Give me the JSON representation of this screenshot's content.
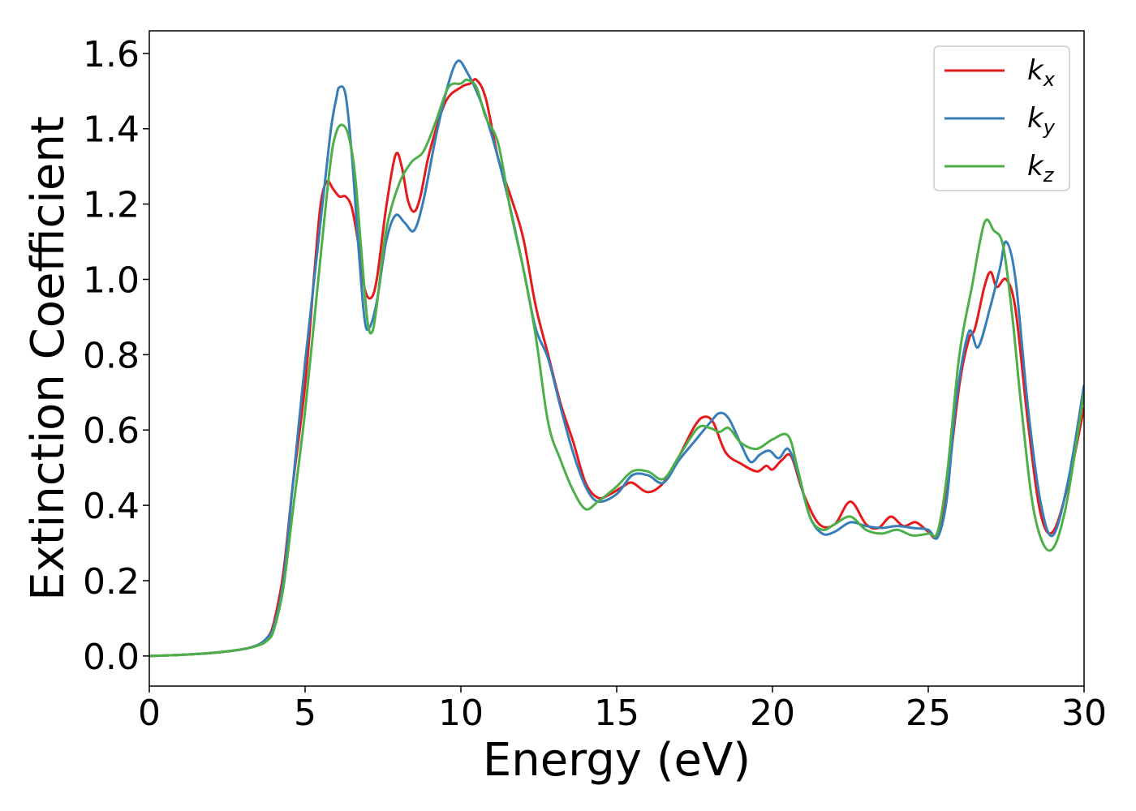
{
  "chart_data": {
    "type": "line",
    "title": "",
    "xlabel": "Energy (eV)",
    "ylabel": "Extinction Coefficient",
    "xlim": [
      0,
      30
    ],
    "ylim": [
      -0.08,
      1.66
    ],
    "xticks": [
      0,
      5,
      10,
      15,
      20,
      25,
      30
    ],
    "xtick_labels": [
      "0",
      "5",
      "10",
      "15",
      "20",
      "25",
      "30"
    ],
    "yticks": [
      0.0,
      0.2,
      0.4,
      0.6,
      0.8,
      1.0,
      1.2,
      1.4,
      1.6
    ],
    "ytick_labels": [
      "0.0",
      "0.2",
      "0.4",
      "0.6",
      "0.8",
      "1.0",
      "1.2",
      "1.4",
      "1.6"
    ],
    "grid": false,
    "legend_position": "top-right",
    "series": [
      {
        "name": "k_x",
        "label_base": "k",
        "label_sub": "x",
        "color": "#e41a1c",
        "points": [
          [
            0,
            0.0
          ],
          [
            1,
            0.003
          ],
          [
            2,
            0.008
          ],
          [
            3,
            0.018
          ],
          [
            3.5,
            0.03
          ],
          [
            3.8,
            0.05
          ],
          [
            4,
            0.09
          ],
          [
            4.3,
            0.22
          ],
          [
            4.6,
            0.45
          ],
          [
            5,
            0.72
          ],
          [
            5.3,
            1.02
          ],
          [
            5.5,
            1.2
          ],
          [
            5.7,
            1.26
          ],
          [
            5.9,
            1.24
          ],
          [
            6.1,
            1.22
          ],
          [
            6.3,
            1.22
          ],
          [
            6.5,
            1.19
          ],
          [
            6.7,
            1.1
          ],
          [
            6.9,
            0.98
          ],
          [
            7.1,
            0.95
          ],
          [
            7.3,
            1.0
          ],
          [
            7.6,
            1.19
          ],
          [
            7.9,
            1.33
          ],
          [
            8.1,
            1.3
          ],
          [
            8.3,
            1.21
          ],
          [
            8.5,
            1.18
          ],
          [
            8.7,
            1.22
          ],
          [
            9,
            1.34
          ],
          [
            9.5,
            1.47
          ],
          [
            10,
            1.51
          ],
          [
            10.3,
            1.52
          ],
          [
            10.5,
            1.53
          ],
          [
            10.8,
            1.48
          ],
          [
            11.2,
            1.32
          ],
          [
            11.6,
            1.22
          ],
          [
            12,
            1.11
          ],
          [
            12.4,
            0.93
          ],
          [
            12.8,
            0.8
          ],
          [
            13.2,
            0.67
          ],
          [
            13.6,
            0.57
          ],
          [
            14,
            0.46
          ],
          [
            14.4,
            0.42
          ],
          [
            14.8,
            0.43
          ],
          [
            15.2,
            0.45
          ],
          [
            15.5,
            0.46
          ],
          [
            16,
            0.435
          ],
          [
            16.5,
            0.46
          ],
          [
            17,
            0.53
          ],
          [
            17.5,
            0.61
          ],
          [
            17.8,
            0.635
          ],
          [
            18.1,
            0.62
          ],
          [
            18.5,
            0.54
          ],
          [
            19,
            0.51
          ],
          [
            19.5,
            0.49
          ],
          [
            19.8,
            0.505
          ],
          [
            20,
            0.495
          ],
          [
            20.3,
            0.52
          ],
          [
            20.6,
            0.53
          ],
          [
            21,
            0.43
          ],
          [
            21.5,
            0.35
          ],
          [
            22,
            0.35
          ],
          [
            22.5,
            0.41
          ],
          [
            23,
            0.35
          ],
          [
            23.4,
            0.34
          ],
          [
            23.8,
            0.37
          ],
          [
            24.2,
            0.345
          ],
          [
            24.6,
            0.355
          ],
          [
            25,
            0.33
          ],
          [
            25.3,
            0.32
          ],
          [
            25.6,
            0.45
          ],
          [
            26,
            0.72
          ],
          [
            26.3,
            0.84
          ],
          [
            26.5,
            0.87
          ],
          [
            26.8,
            0.98
          ],
          [
            27,
            1.02
          ],
          [
            27.2,
            0.98
          ],
          [
            27.5,
            1.0
          ],
          [
            27.8,
            0.92
          ],
          [
            28.2,
            0.62
          ],
          [
            28.6,
            0.38
          ],
          [
            29,
            0.33
          ],
          [
            29.5,
            0.46
          ],
          [
            30,
            0.66
          ]
        ]
      },
      {
        "name": "k_y",
        "label_base": "k",
        "label_sub": "y",
        "color": "#377eb8",
        "points": [
          [
            0,
            0.0
          ],
          [
            1,
            0.003
          ],
          [
            2,
            0.008
          ],
          [
            3,
            0.018
          ],
          [
            3.5,
            0.03
          ],
          [
            3.8,
            0.05
          ],
          [
            4,
            0.08
          ],
          [
            4.3,
            0.2
          ],
          [
            4.6,
            0.45
          ],
          [
            5,
            0.78
          ],
          [
            5.4,
            1.08
          ],
          [
            5.8,
            1.38
          ],
          [
            6,
            1.48
          ],
          [
            6.1,
            1.51
          ],
          [
            6.3,
            1.49
          ],
          [
            6.5,
            1.33
          ],
          [
            6.7,
            1.1
          ],
          [
            6.9,
            0.9
          ],
          [
            7.05,
            0.87
          ],
          [
            7.3,
            0.94
          ],
          [
            7.6,
            1.1
          ],
          [
            7.9,
            1.17
          ],
          [
            8.2,
            1.15
          ],
          [
            8.5,
            1.13
          ],
          [
            8.8,
            1.21
          ],
          [
            9.2,
            1.38
          ],
          [
            9.6,
            1.52
          ],
          [
            9.9,
            1.58
          ],
          [
            10.2,
            1.55
          ],
          [
            10.6,
            1.48
          ],
          [
            11,
            1.38
          ],
          [
            11.5,
            1.22
          ],
          [
            12,
            1.03
          ],
          [
            12.4,
            0.87
          ],
          [
            12.8,
            0.79
          ],
          [
            13.2,
            0.66
          ],
          [
            13.6,
            0.54
          ],
          [
            14,
            0.45
          ],
          [
            14.4,
            0.41
          ],
          [
            15,
            0.43
          ],
          [
            15.5,
            0.48
          ],
          [
            16,
            0.48
          ],
          [
            16.5,
            0.46
          ],
          [
            17,
            0.52
          ],
          [
            17.5,
            0.57
          ],
          [
            18,
            0.62
          ],
          [
            18.3,
            0.645
          ],
          [
            18.6,
            0.63
          ],
          [
            19,
            0.56
          ],
          [
            19.3,
            0.515
          ],
          [
            19.6,
            0.535
          ],
          [
            19.9,
            0.545
          ],
          [
            20.2,
            0.525
          ],
          [
            20.5,
            0.55
          ],
          [
            20.8,
            0.49
          ],
          [
            21.2,
            0.37
          ],
          [
            21.6,
            0.325
          ],
          [
            22,
            0.33
          ],
          [
            22.5,
            0.355
          ],
          [
            23,
            0.345
          ],
          [
            23.5,
            0.34
          ],
          [
            24,
            0.345
          ],
          [
            24.5,
            0.34
          ],
          [
            25,
            0.335
          ],
          [
            25.3,
            0.315
          ],
          [
            25.6,
            0.42
          ],
          [
            25.9,
            0.68
          ],
          [
            26.3,
            0.86
          ],
          [
            26.6,
            0.82
          ],
          [
            27,
            0.93
          ],
          [
            27.3,
            1.03
          ],
          [
            27.5,
            1.1
          ],
          [
            27.8,
            1.0
          ],
          [
            28.2,
            0.66
          ],
          [
            28.6,
            0.41
          ],
          [
            29,
            0.32
          ],
          [
            29.5,
            0.47
          ],
          [
            30,
            0.72
          ]
        ]
      },
      {
        "name": "k_z",
        "label_base": "k",
        "label_sub": "z",
        "color": "#4daf4a",
        "points": [
          [
            0,
            0.0
          ],
          [
            1,
            0.003
          ],
          [
            2,
            0.008
          ],
          [
            3,
            0.018
          ],
          [
            3.5,
            0.028
          ],
          [
            3.8,
            0.042
          ],
          [
            4,
            0.07
          ],
          [
            4.3,
            0.18
          ],
          [
            4.6,
            0.38
          ],
          [
            5,
            0.65
          ],
          [
            5.4,
            0.98
          ],
          [
            5.8,
            1.3
          ],
          [
            6,
            1.39
          ],
          [
            6.2,
            1.41
          ],
          [
            6.4,
            1.38
          ],
          [
            6.6,
            1.28
          ],
          [
            6.8,
            1.08
          ],
          [
            7,
            0.89
          ],
          [
            7.15,
            0.86
          ],
          [
            7.3,
            0.93
          ],
          [
            7.6,
            1.13
          ],
          [
            8,
            1.25
          ],
          [
            8.4,
            1.31
          ],
          [
            8.8,
            1.34
          ],
          [
            9.2,
            1.42
          ],
          [
            9.6,
            1.51
          ],
          [
            10,
            1.52
          ],
          [
            10.2,
            1.53
          ],
          [
            10.5,
            1.51
          ],
          [
            10.8,
            1.43
          ],
          [
            11.2,
            1.36
          ],
          [
            11.6,
            1.18
          ],
          [
            12,
            1.03
          ],
          [
            12.4,
            0.85
          ],
          [
            12.8,
            0.62
          ],
          [
            13.2,
            0.52
          ],
          [
            13.6,
            0.44
          ],
          [
            14,
            0.39
          ],
          [
            14.4,
            0.41
          ],
          [
            15,
            0.45
          ],
          [
            15.5,
            0.49
          ],
          [
            16,
            0.49
          ],
          [
            16.5,
            0.47
          ],
          [
            17,
            0.53
          ],
          [
            17.6,
            0.605
          ],
          [
            18,
            0.605
          ],
          [
            18.3,
            0.595
          ],
          [
            18.6,
            0.605
          ],
          [
            19,
            0.565
          ],
          [
            19.5,
            0.55
          ],
          [
            20,
            0.575
          ],
          [
            20.5,
            0.585
          ],
          [
            20.8,
            0.5
          ],
          [
            21.2,
            0.37
          ],
          [
            21.6,
            0.335
          ],
          [
            22,
            0.35
          ],
          [
            22.5,
            0.37
          ],
          [
            23,
            0.335
          ],
          [
            23.5,
            0.325
          ],
          [
            24,
            0.335
          ],
          [
            24.5,
            0.32
          ],
          [
            25,
            0.325
          ],
          [
            25.3,
            0.33
          ],
          [
            25.6,
            0.48
          ],
          [
            26,
            0.8
          ],
          [
            26.4,
            0.98
          ],
          [
            26.8,
            1.15
          ],
          [
            27.1,
            1.13
          ],
          [
            27.4,
            1.09
          ],
          [
            27.7,
            0.9
          ],
          [
            28,
            0.65
          ],
          [
            28.4,
            0.38
          ],
          [
            28.9,
            0.28
          ],
          [
            29.4,
            0.39
          ],
          [
            30,
            0.7
          ]
        ]
      }
    ]
  }
}
